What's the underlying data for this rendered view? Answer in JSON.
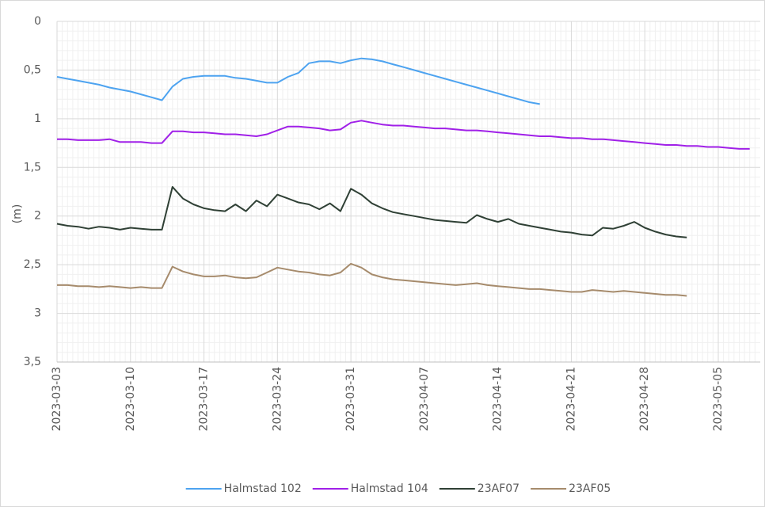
{
  "chart_data": {
    "type": "line",
    "ylabel": "(m)",
    "inverted": true,
    "grid": true,
    "minor_grid": true,
    "legend": "bottom",
    "ylim": [
      0,
      3.5
    ],
    "yticks": [
      0,
      {
        "value": 0.5,
        "label": "0,5"
      },
      1,
      {
        "value": 1.5,
        "label": "1,5"
      },
      2,
      {
        "value": 2.5,
        "label": "2,5"
      },
      3,
      {
        "value": 3.5,
        "label": "3,5"
      }
    ],
    "xlim": [
      "2023-03-03",
      "2023-05-09"
    ],
    "xticks": [
      "2023-03-03",
      "2023-03-10",
      "2023-03-17",
      "2023-03-24",
      "2023-03-31",
      "2023-04-07",
      "2023-04-14",
      "2023-04-21",
      "2023-04-28",
      "2023-05-05"
    ],
    "x": [
      "2023-03-03",
      "2023-03-04",
      "2023-03-05",
      "2023-03-06",
      "2023-03-07",
      "2023-03-08",
      "2023-03-09",
      "2023-03-10",
      "2023-03-11",
      "2023-03-12",
      "2023-03-13",
      "2023-03-14",
      "2023-03-15",
      "2023-03-16",
      "2023-03-17",
      "2023-03-18",
      "2023-03-19",
      "2023-03-20",
      "2023-03-21",
      "2023-03-22",
      "2023-03-23",
      "2023-03-24",
      "2023-03-25",
      "2023-03-26",
      "2023-03-27",
      "2023-03-28",
      "2023-03-29",
      "2023-03-30",
      "2023-03-31",
      "2023-04-01",
      "2023-04-02",
      "2023-04-03",
      "2023-04-04",
      "2023-04-05",
      "2023-04-06",
      "2023-04-07",
      "2023-04-08",
      "2023-04-09",
      "2023-04-10",
      "2023-04-11",
      "2023-04-12",
      "2023-04-13",
      "2023-04-14",
      "2023-04-15",
      "2023-04-16",
      "2023-04-17",
      "2023-04-18",
      "2023-04-19",
      "2023-04-20",
      "2023-04-21",
      "2023-04-22",
      "2023-04-23",
      "2023-04-24",
      "2023-04-25",
      "2023-04-26",
      "2023-04-27",
      "2023-04-28",
      "2023-04-29",
      "2023-04-30",
      "2023-05-01",
      "2023-05-02",
      "2023-05-03",
      "2023-05-04",
      "2023-05-05",
      "2023-05-06",
      "2023-05-07",
      "2023-05-08"
    ],
    "series": [
      {
        "name": "Halmstad 102",
        "color": "#4da3f0",
        "values": [
          0.57,
          0.59,
          0.61,
          0.63,
          0.65,
          0.68,
          0.7,
          0.72,
          0.75,
          0.78,
          0.81,
          0.67,
          0.59,
          0.57,
          0.56,
          0.56,
          0.56,
          0.58,
          0.59,
          0.61,
          0.63,
          0.63,
          0.57,
          0.53,
          0.43,
          0.41,
          0.41,
          0.43,
          0.4,
          0.38,
          0.39,
          0.41,
          0.44,
          0.47,
          0.5,
          0.53,
          0.56,
          0.59,
          0.62,
          0.65,
          0.68,
          0.71,
          0.74,
          0.77,
          0.8,
          0.83,
          0.85,
          null,
          null,
          null,
          null,
          null,
          null,
          null,
          null,
          null,
          null,
          null,
          null,
          null,
          null,
          null,
          null,
          null,
          null,
          null,
          null
        ]
      },
      {
        "name": "Halmstad 104",
        "color": "#a020e8",
        "values": [
          1.21,
          1.21,
          1.22,
          1.22,
          1.22,
          1.21,
          1.24,
          1.24,
          1.24,
          1.25,
          1.25,
          1.13,
          1.13,
          1.14,
          1.14,
          1.15,
          1.16,
          1.16,
          1.17,
          1.18,
          1.16,
          1.12,
          1.08,
          1.08,
          1.09,
          1.1,
          1.12,
          1.11,
          1.04,
          1.02,
          1.04,
          1.06,
          1.07,
          1.07,
          1.08,
          1.09,
          1.1,
          1.1,
          1.11,
          1.12,
          1.12,
          1.13,
          1.14,
          1.15,
          1.16,
          1.17,
          1.18,
          1.18,
          1.19,
          1.2,
          1.2,
          1.21,
          1.21,
          1.22,
          1.23,
          1.24,
          1.25,
          1.26,
          1.27,
          1.27,
          1.28,
          1.28,
          1.29,
          1.29,
          1.3,
          1.31,
          1.31
        ]
      },
      {
        "name": "23AF07",
        "color": "#2f4035",
        "values": [
          2.08,
          2.1,
          2.11,
          2.13,
          2.11,
          2.12,
          2.14,
          2.12,
          2.13,
          2.14,
          2.14,
          1.7,
          1.82,
          1.88,
          1.92,
          1.94,
          1.95,
          1.88,
          1.95,
          1.84,
          1.9,
          1.78,
          1.82,
          1.86,
          1.88,
          1.93,
          1.87,
          1.95,
          1.72,
          1.78,
          1.87,
          1.92,
          1.96,
          1.98,
          2.0,
          2.02,
          2.04,
          2.05,
          2.06,
          2.07,
          1.99,
          2.03,
          2.06,
          2.03,
          2.08,
          2.1,
          2.12,
          2.14,
          2.16,
          2.17,
          2.19,
          2.2,
          2.12,
          2.13,
          2.1,
          2.06,
          2.12,
          2.16,
          2.19,
          2.21,
          2.22,
          null,
          null,
          null,
          null,
          null,
          null
        ]
      },
      {
        "name": "23AF05",
        "color": "#a68b6c",
        "values": [
          2.71,
          2.71,
          2.72,
          2.72,
          2.73,
          2.72,
          2.73,
          2.74,
          2.73,
          2.74,
          2.74,
          2.52,
          2.57,
          2.6,
          2.62,
          2.62,
          2.61,
          2.63,
          2.64,
          2.63,
          2.58,
          2.53,
          2.55,
          2.57,
          2.58,
          2.6,
          2.61,
          2.58,
          2.49,
          2.53,
          2.6,
          2.63,
          2.65,
          2.66,
          2.67,
          2.68,
          2.69,
          2.7,
          2.71,
          2.7,
          2.69,
          2.71,
          2.72,
          2.73,
          2.74,
          2.75,
          2.75,
          2.76,
          2.77,
          2.78,
          2.78,
          2.76,
          2.77,
          2.78,
          2.77,
          2.78,
          2.79,
          2.8,
          2.81,
          2.81,
          2.82,
          null,
          null,
          null,
          null,
          null,
          null
        ]
      }
    ]
  }
}
